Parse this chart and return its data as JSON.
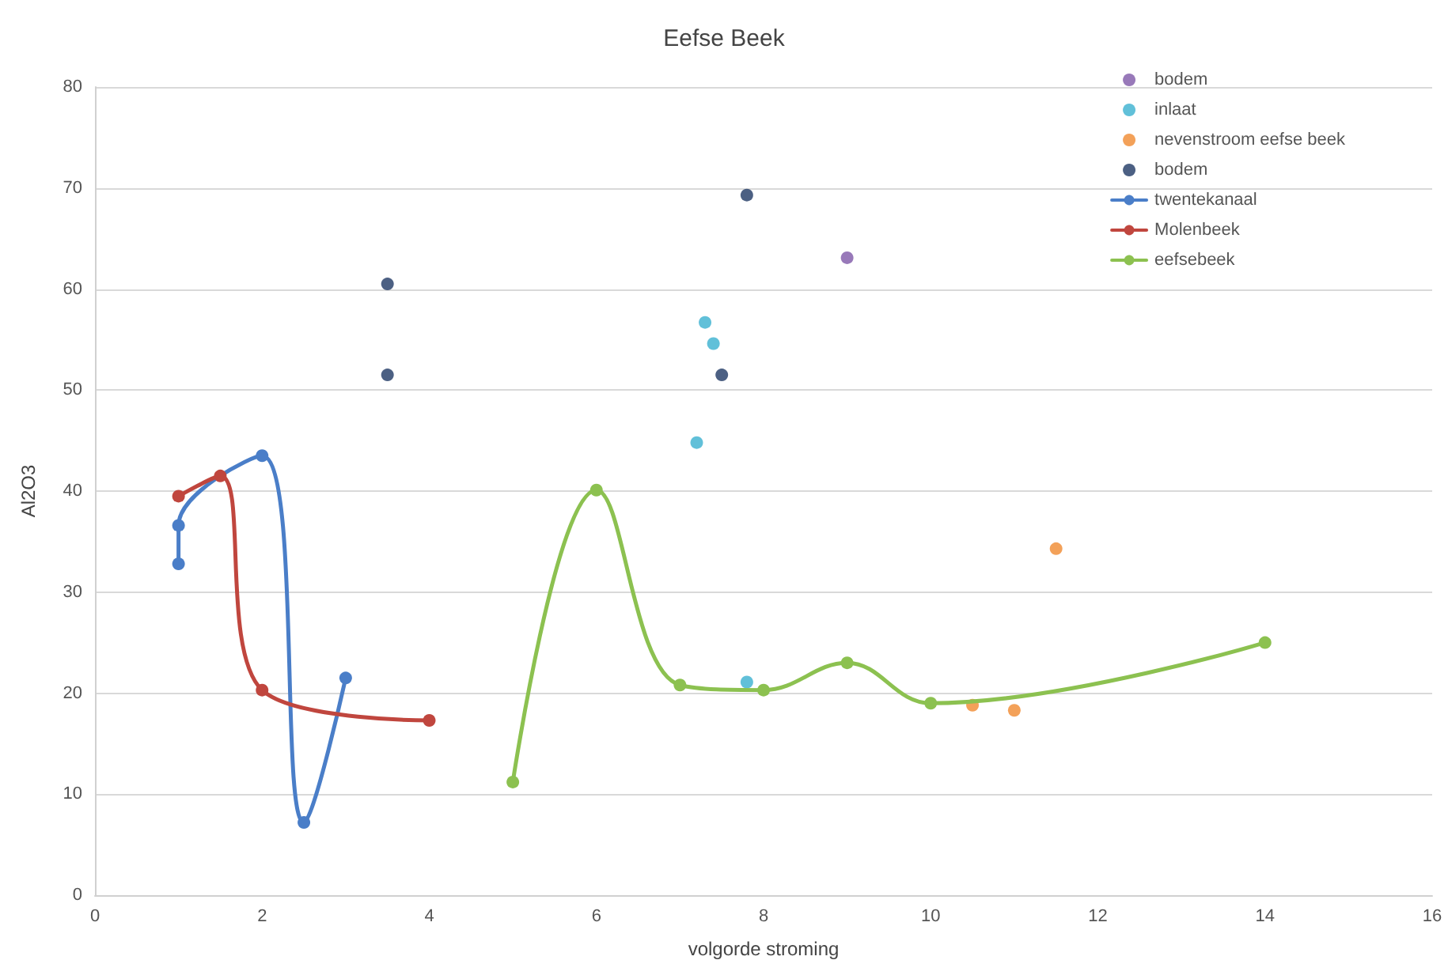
{
  "chart_data": {
    "type": "line",
    "title": "Eefse Beek",
    "xlabel": "volgorde stroming",
    "ylabel": "Al2O3",
    "xlim": [
      0,
      16
    ],
    "xticks": [
      0,
      2,
      4,
      6,
      8,
      10,
      12,
      14,
      16
    ],
    "ylim": [
      0,
      80
    ],
    "yticks": [
      0,
      10,
      20,
      30,
      40,
      50,
      60,
      70,
      80
    ],
    "grid": "y",
    "legend": "top right",
    "marker": "circle",
    "line_style": "solid",
    "series": [
      {
        "name": "bodem",
        "type": "scatter",
        "color": "#7e57a8",
        "x": [
          9
        ],
        "values": [
          63.1
        ]
      },
      {
        "name": "inlaat",
        "type": "scatter",
        "color": "#3ab0d0",
        "x": [
          7.2,
          7.3,
          7.4,
          7.8
        ],
        "values": [
          44.8,
          56.7,
          54.6,
          21.1
        ]
      },
      {
        "name": "nevenstroom eefse beek",
        "type": "scatter",
        "color": "#f08a30",
        "x": [
          10.5,
          11,
          11.5
        ],
        "values": [
          18.8,
          18.3,
          34.3
        ]
      },
      {
        "name": "bodem",
        "type": "scatter",
        "color": "#1f3864",
        "x": [
          3.5,
          3.5,
          7.8,
          7.5
        ],
        "values": [
          60.5,
          51.5,
          69.3,
          51.5
        ]
      },
      {
        "name": "twentekanaal",
        "type": "line",
        "color": "#4a7ec8",
        "x": [
          1,
          1,
          2,
          2.5,
          3
        ],
        "values": [
          32.8,
          36.6,
          43.5,
          7.2,
          21.5
        ]
      },
      {
        "name": "Molenbeek",
        "type": "line",
        "color": "#c0463e",
        "x": [
          1,
          1.5,
          2,
          4
        ],
        "values": [
          39.5,
          41.5,
          20.3,
          17.3
        ]
      },
      {
        "name": "eefsebeek",
        "type": "line",
        "color": "#8cc150",
        "x": [
          5,
          6,
          7,
          8,
          9,
          10,
          14
        ],
        "values": [
          11.2,
          40.1,
          20.8,
          20.3,
          23,
          19,
          25
        ]
      }
    ]
  }
}
